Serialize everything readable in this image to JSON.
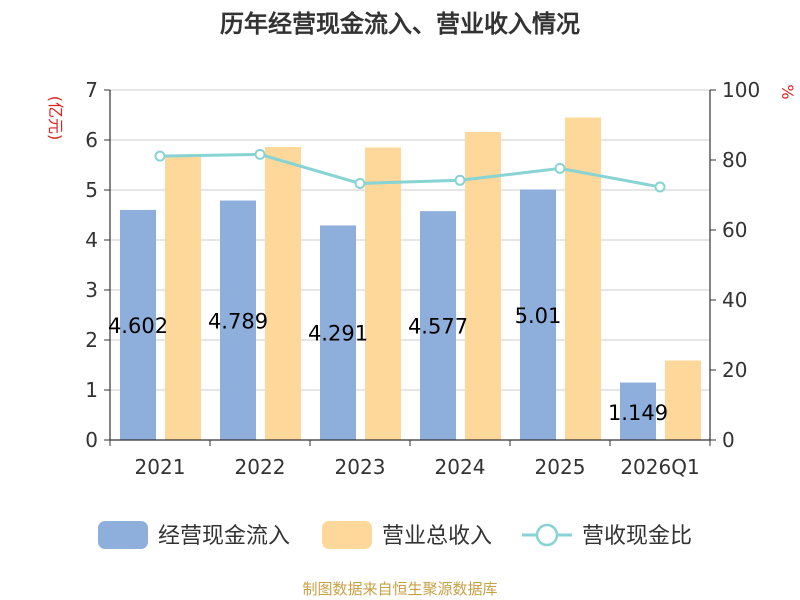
{
  "chart_data": {
    "type": "bar",
    "title": "历年经营现金流入、营业收入情况",
    "categories": [
      "2021",
      "2022",
      "2023",
      "2024",
      "2025",
      "2026Q1"
    ],
    "left_axis": {
      "unit": "(亿元)",
      "min": 0,
      "max": 7,
      "ticks": [
        0,
        1,
        2,
        3,
        4,
        5,
        6,
        7
      ]
    },
    "right_axis": {
      "unit": "%",
      "min": 0,
      "max": 100,
      "ticks": [
        0,
        20,
        40,
        60,
        80,
        100
      ]
    },
    "grid": true,
    "legend_position": "bottom",
    "series": [
      {
        "name": "经营现金流入",
        "type": "bar",
        "axis": "left",
        "color": "#8eaedc",
        "values": [
          4.602,
          4.789,
          4.291,
          4.577,
          5.01,
          1.149
        ],
        "labels": [
          "4.602",
          "4.789",
          "4.291",
          "4.577",
          "5.01",
          "1.149"
        ]
      },
      {
        "name": "营业总收入",
        "type": "bar",
        "axis": "left",
        "color": "#fdd89a",
        "values": [
          5.68,
          5.86,
          5.85,
          6.16,
          6.45,
          1.59
        ]
      },
      {
        "name": "营收现金比",
        "type": "line",
        "axis": "right",
        "color": "#88d3d3",
        "values": [
          81.1,
          81.6,
          73.3,
          74.2,
          77.6,
          72.3
        ]
      }
    ]
  },
  "source": "制图数据来自恒生聚源数据库"
}
